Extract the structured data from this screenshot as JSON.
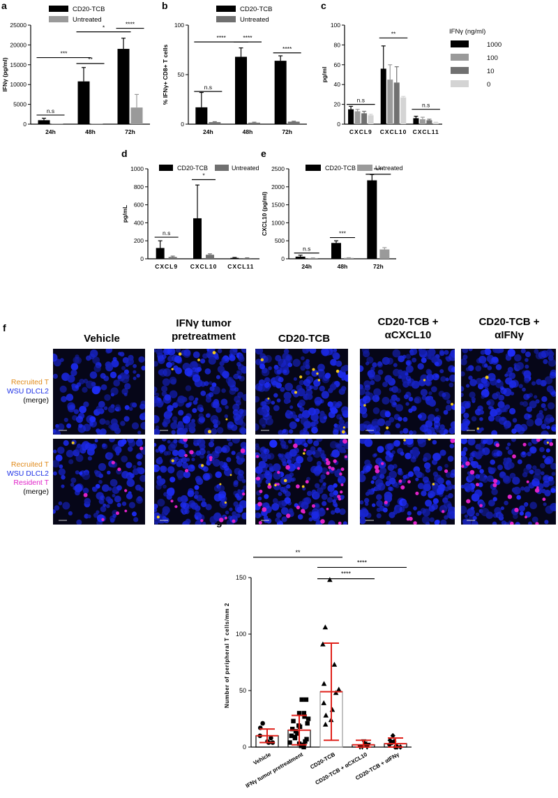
{
  "panels": {
    "a": "a",
    "b": "b",
    "c": "c",
    "d": "d",
    "e": "e",
    "f": "f",
    "g": "g"
  },
  "colors": {
    "black": "#000000",
    "grey": "#9a9a9a",
    "dark_grey": "#707070",
    "light_grey": "#d4d4d4",
    "red": "#e0201a",
    "nuclei_blue": "#1b2ee6",
    "recruited_orange": "#e08a1a",
    "resident_magenta": "#e021c8"
  },
  "chart_data": [
    {
      "id": "a",
      "type": "bar",
      "categories": [
        "24h",
        "48h",
        "72h"
      ],
      "series": [
        {
          "name": "CD20-TCB",
          "values": [
            1000,
            10800,
            19000
          ],
          "errors": [
            500,
            3500,
            2700
          ],
          "color": "#000000"
        },
        {
          "name": "Untreated",
          "values": [
            100,
            100,
            4200
          ],
          "errors": [
            0,
            0,
            3300
          ],
          "color": "#9a9a9a"
        }
      ],
      "ylabel": "IFNγ (pg/ml)",
      "ylim": [
        0,
        25000
      ],
      "yticks": [
        0,
        5000,
        10000,
        15000,
        20000,
        25000
      ],
      "significance": [
        {
          "label": "n.s",
          "from": 0,
          "to": "0b",
          "level": 2300
        },
        {
          "label": "***",
          "from": 0,
          "to": 1,
          "level": 16800
        },
        {
          "label": "**",
          "from": 1,
          "to": "1b",
          "level": 15300
        },
        {
          "label": "*",
          "from": 1,
          "to": 2,
          "level": 23300
        },
        {
          "label": "****",
          "from": 2,
          "to": "2b",
          "level": 24200
        }
      ],
      "legend": "top"
    },
    {
      "id": "b",
      "type": "bar",
      "categories": [
        "24h",
        "48h",
        "72h"
      ],
      "series": [
        {
          "name": "CD20-TCB",
          "values": [
            17,
            68,
            64
          ],
          "errors": [
            15,
            9,
            5
          ],
          "color": "#000000"
        },
        {
          "name": "Untreated",
          "values": [
            2,
            1.5,
            2.5
          ],
          "errors": [
            0.5,
            0.5,
            0.5
          ],
          "color": "#707070"
        }
      ],
      "ylabel": "% IFNγ+ CD8+ T cells",
      "ylim": [
        0,
        100
      ],
      "yticks": [
        0,
        50,
        100
      ],
      "significance": [
        {
          "label": "n.s",
          "from": 0,
          "to": "0b",
          "level": 33
        },
        {
          "label": "****",
          "from": 0,
          "to": 1,
          "level": 83
        },
        {
          "label": "****",
          "from": 1,
          "to": "1b",
          "level": 83
        },
        {
          "label": "****",
          "from": 2,
          "to": "2b",
          "level": 72
        }
      ],
      "legend": "top"
    },
    {
      "id": "c",
      "type": "bar",
      "categories": [
        "CXCL9",
        "CXCL10",
        "CXCL11"
      ],
      "series": [
        {
          "name": "1000",
          "values": [
            15,
            56,
            6
          ],
          "errors": [
            3,
            23,
            2
          ],
          "color": "#000000"
        },
        {
          "name": "100",
          "values": [
            13,
            45,
            5
          ],
          "errors": [
            2,
            15,
            2
          ],
          "color": "#9a9a9a"
        },
        {
          "name": "10",
          "values": [
            11,
            42,
            4
          ],
          "errors": [
            2,
            16,
            1
          ],
          "color": "#707070"
        },
        {
          "name": "0",
          "values": [
            9,
            27,
            1.5
          ],
          "errors": [
            1,
            1,
            0.5
          ],
          "color": "#d4d4d4"
        }
      ],
      "ylabel": "pg/ml",
      "ylim": [
        0,
        100
      ],
      "yticks": [
        0,
        20,
        40,
        60,
        80,
        100
      ],
      "legend_title": "IFNγ (ng/ml)",
      "significance": [
        {
          "label": "n.s",
          "from": 0,
          "to": "0d",
          "level": 20
        },
        {
          "label": "**",
          "from": 1,
          "to": "1d",
          "level": 87
        },
        {
          "label": "n.s",
          "from": 2,
          "to": "2d",
          "level": 15
        }
      ],
      "legend": "right"
    },
    {
      "id": "d",
      "type": "bar",
      "categories": [
        "CXCL9",
        "CXCL10",
        "CXCL11"
      ],
      "series": [
        {
          "name": "CD20-TCB",
          "values": [
            120,
            450,
            10
          ],
          "errors": [
            80,
            370,
            5
          ],
          "color": "#000000"
        },
        {
          "name": "Untreated",
          "values": [
            20,
            45,
            8
          ],
          "errors": [
            10,
            10,
            3
          ],
          "color": "#707070"
        }
      ],
      "ylabel": "pg/mL",
      "ylim": [
        0,
        1000
      ],
      "yticks": [
        0,
        200,
        400,
        600,
        800,
        1000
      ],
      "significance": [
        {
          "label": "n.s",
          "from": 0,
          "to": "0b",
          "level": 240
        },
        {
          "label": "*",
          "from": 1,
          "to": "1b",
          "level": 880
        }
      ],
      "legend": "top"
    },
    {
      "id": "e",
      "type": "bar",
      "categories": [
        "24h",
        "48h",
        "72h"
      ],
      "series": [
        {
          "name": "CD20-TCB",
          "values": [
            60,
            440,
            2180
          ],
          "errors": [
            40,
            60,
            160
          ],
          "color": "#000000"
        },
        {
          "name": "Untreated",
          "values": [
            20,
            25,
            260
          ],
          "errors": [
            5,
            5,
            50
          ],
          "color": "#9a9a9a"
        }
      ],
      "ylabel": "CXCL10 (pg/ml)",
      "ylim": [
        0,
        2500
      ],
      "yticks": [
        0,
        500,
        1000,
        1500,
        2000,
        2500
      ],
      "significance": [
        {
          "label": "n.s",
          "from": 0,
          "to": "0b",
          "level": 160
        },
        {
          "label": "***",
          "from": 1,
          "to": "1b",
          "level": 590
        },
        {
          "label": "****",
          "from": 2,
          "to": "2b",
          "level": 2350
        }
      ],
      "legend": "top"
    },
    {
      "id": "g",
      "type": "scatter",
      "categories": [
        "Vehicle",
        "IFNγ tumor pretreatment",
        "CD20-TCB",
        "CD20-TCB + αCXCL10",
        "CD20-TCB + αIFNγ"
      ],
      "means": [
        10,
        15,
        49,
        2,
        3
      ],
      "sd": [
        6,
        13,
        43,
        4,
        5
      ],
      "markers": [
        "circle",
        "square",
        "triangle-up",
        "triangle-down",
        "diamond"
      ],
      "points": [
        [
          21,
          17,
          10,
          8,
          5,
          4,
          4
        ],
        [
          42,
          42,
          30,
          30,
          27,
          25,
          23,
          21,
          19,
          18,
          16,
          14,
          12,
          10,
          9,
          8,
          7,
          5,
          4,
          3,
          2,
          1,
          0
        ],
        [
          148,
          106,
          91,
          73,
          56,
          51,
          48,
          39,
          33,
          28,
          24,
          20
        ],
        [
          5,
          3,
          2,
          1,
          0,
          0,
          0
        ],
        [
          10,
          6,
          5,
          4,
          3,
          2,
          1,
          0,
          0,
          0
        ]
      ],
      "ylabel": "Number of peripheral T cells/mm 2",
      "ylim": [
        0,
        150
      ],
      "yticks": [
        0,
        50,
        100,
        150
      ],
      "significance": [
        {
          "label": "**",
          "from": 0,
          "to": 2,
          "level": 168
        },
        {
          "label": "****",
          "from": 2,
          "to": 3,
          "level": 149
        },
        {
          "label": "****",
          "from": 2,
          "to": 4,
          "level": 159
        }
      ]
    }
  ],
  "legend_labels": {
    "a": [
      "CD20-TCB",
      "Untreated"
    ],
    "b": [
      "CD20-TCB",
      "Untreated"
    ],
    "c_title": "IFNγ (ng/ml)",
    "c": [
      "1000",
      "100",
      "10",
      "0"
    ],
    "d": [
      "CD20-TCB",
      "Untreated"
    ],
    "e": [
      "CD20-TCB",
      "Untreated"
    ]
  },
  "panel_f": {
    "columns": [
      "Vehicle",
      "IFNγ tumor\npretreatment",
      "CD20-TCB",
      "CD20-TCB +\nαCXCL10",
      "CD20-TCB +\nαIFNγ"
    ],
    "row1_label": [
      {
        "text": "Recruited T",
        "color": "#e08a1a"
      },
      {
        "text": "WSU DLCL2",
        "color": "#1b2ee6"
      },
      {
        "text": "(merge)",
        "color": "#000000"
      }
    ],
    "row2_label": [
      {
        "text": "Recruited T",
        "color": "#e08a1a"
      },
      {
        "text": "WSU DLCL2",
        "color": "#1b2ee6"
      },
      {
        "text": "Resident T",
        "color": "#e021c8"
      },
      {
        "text": "(merge)",
        "color": "#000000"
      }
    ]
  }
}
